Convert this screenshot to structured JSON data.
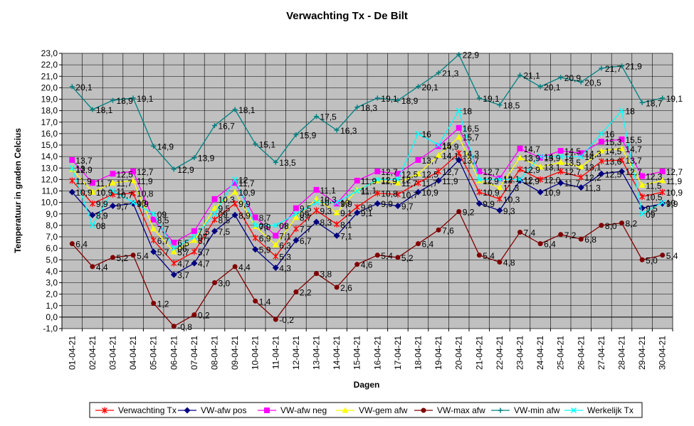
{
  "chart_data": {
    "type": "line",
    "title": "Verwachting Tx - De Bilt",
    "xlabel": "Dagen",
    "ylabel": "Temperatuur in graden Celcius",
    "ylim": [
      -1.0,
      23.0
    ],
    "y_ticks": [
      "-1,0",
      "0,0",
      "1,0",
      "2,0",
      "3,0",
      "4,0",
      "5,0",
      "6,0",
      "7,0",
      "8,0",
      "9,0",
      "10,0",
      "11,0",
      "12,0",
      "13,0",
      "14,0",
      "15,0",
      "16,0",
      "17,0",
      "18,0",
      "19,0",
      "20,0",
      "21,0",
      "22,0",
      "23,0"
    ],
    "grid": true,
    "legend_position": "bottom",
    "categories": [
      "01-04-21",
      "02-04-21",
      "03-04-21",
      "04-04-21",
      "05-04-21",
      "06-04-21",
      "07-04-21",
      "08-04-21",
      "09-04-21",
      "10-04-21",
      "11-04-21",
      "12-04-21",
      "13-04-21",
      "14-04-21",
      "15-04-21",
      "16-04-21",
      "17-04-21",
      "18-04-21",
      "19-04-21",
      "20-04-21",
      "21-04-21",
      "22-04-21",
      "23-04-21",
      "24-04-21",
      "25-04-21",
      "26-04-21",
      "27-04-21",
      "28-04-21",
      "29-04-21",
      "30-04-21"
    ],
    "series": [
      {
        "name": "Verwachting Tx",
        "color": "#ff0000",
        "marker": "star",
        "values": [
          11.9,
          9.9,
          10.7,
          10.8,
          6.7,
          4.7,
          5.7,
          8.5,
          9.9,
          6.9,
          5.3,
          7.7,
          9.3,
          8.1,
          9.6,
          10.8,
          10.7,
          11.7,
          12.7,
          14.3,
          10.9,
          10.3,
          12.9,
          12.0,
          12.7,
          12.2,
          13.6,
          13.7,
          10.5,
          10.9
        ],
        "labels": [
          "11,9",
          "9,9",
          "10,7",
          "10,8",
          "6,7",
          "4,7",
          "5,7",
          "8,5",
          "9,9",
          "6,9",
          "5,3",
          "7,7",
          "9,3",
          "8,1",
          "9,6",
          "10,8",
          "10,7",
          "11,7",
          "12,7",
          "14,3",
          "10,9",
          "10,3",
          "12,9",
          "12,0",
          "12,7",
          "12,2",
          "13,6",
          "13,7",
          "10,5",
          "10,9"
        ]
      },
      {
        "name": "VW-afw pos",
        "color": "#000080",
        "marker": "diamond",
        "values": [
          10.9,
          8.9,
          9.7,
          9.9,
          5.7,
          3.7,
          4.7,
          7.5,
          8.9,
          5.9,
          4.3,
          6.7,
          8.3,
          7.1,
          9.1,
          9.9,
          9.7,
          10.9,
          11.9,
          13.7,
          9.9,
          9.3,
          11.9,
          10.9,
          11.7,
          11.3,
          12.5,
          12.7,
          9.5,
          9.9
        ],
        "labels": [
          "10,9",
          "8,9",
          "9,7",
          "9,9",
          "5,7",
          "3,7",
          "4,7",
          "7,5",
          "8,9",
          "5,9",
          "4,3",
          "6,7",
          "8,3",
          "7,1",
          "9,1",
          "9,9",
          "9,7",
          "10,9",
          "11,9",
          "13,7",
          "9,9",
          "9,3",
          "11,9",
          "10,9",
          "11,7",
          "11,3",
          "12,5",
          "12,7",
          "9,5",
          "9,9"
        ]
      },
      {
        "name": "VW-afw neg",
        "color": "#ff00ff",
        "marker": "square",
        "values": [
          13.7,
          11.7,
          12.5,
          12.7,
          8.5,
          6.5,
          7.5,
          10.3,
          11.7,
          8.7,
          7.1,
          9.5,
          11.1,
          9.9,
          11.9,
          12.7,
          12.5,
          13.7,
          14.9,
          16.5,
          12.7,
          12.1,
          14.7,
          13.9,
          14.5,
          14.3,
          15.3,
          15.5,
          12.3,
          12.7
        ],
        "labels": [
          "13,7",
          "11,7",
          "12,5",
          "12,7",
          "8,5",
          "6,5",
          "7,5",
          "10,3",
          "11,7",
          "8,7",
          "7,1",
          "9,5",
          "11,1",
          "9,9",
          "11,9",
          "12,7",
          "12,5",
          "13,7",
          "14,9",
          "16,5",
          "12,7",
          "12,1",
          "14,7",
          "13,9",
          "14,5",
          "14,3",
          "15,3",
          "15,5",
          "12,3",
          "12,7"
        ]
      },
      {
        "name": "VW-gem afw",
        "color": "#ffff00",
        "marker": "triangle",
        "values": [
          12.9,
          10.9,
          11.7,
          11.9,
          7.7,
          5.7,
          6.7,
          9.5,
          10.9,
          7.9,
          6.3,
          8.7,
          10.3,
          9.1,
          11.1,
          11.9,
          11.7,
          12.5,
          14.1,
          15.7,
          11.9,
          11.3,
          13.9,
          13.1,
          13.5,
          13.1,
          14.5,
          14.7,
          11.5,
          11.9
        ],
        "labels": [
          "12,9",
          "10,9",
          "11,7",
          "11,9",
          "7,7",
          "5,7",
          "6,7",
          "9,5",
          "10,9",
          "7,9",
          "6,3",
          "8,7",
          "10,3",
          "9,1",
          "11,1",
          "11,9",
          "11,7",
          "12,5",
          "14,1",
          "15,7",
          "11,9",
          "11,3",
          "13,9",
          "13,1",
          "13,5",
          "13,1",
          "14,5",
          "14,7",
          "11,5",
          "11,9"
        ]
      },
      {
        "name": "VW-max afw",
        "color": "#800000",
        "marker": "circle",
        "values": [
          6.4,
          4.4,
          5.2,
          5.4,
          1.2,
          -0.8,
          0.2,
          3.0,
          4.4,
          1.4,
          -0.2,
          2.2,
          3.8,
          2.6,
          4.6,
          5.4,
          5.2,
          6.4,
          7.6,
          9.2,
          5.4,
          4.8,
          7.4,
          6.4,
          7.2,
          6.8,
          8.0,
          8.2,
          5.0,
          5.4
        ],
        "labels": [
          "6,4",
          "4,4",
          "5,2",
          "5,4",
          "1,2",
          "-0,8",
          "0,2",
          "3,0",
          "4,4",
          "1,4",
          "-0,2",
          "2,2",
          "3,8",
          "2,6",
          "4,6",
          "5,4",
          "5,2",
          "6,4",
          "7,6",
          "9,2",
          "5,4",
          "4,8",
          "7,4",
          "6,4",
          "7,2",
          "6,8",
          "8,0",
          "8,2",
          "5,0",
          "5,4"
        ]
      },
      {
        "name": "VW-min afw",
        "color": "#008080",
        "marker": "plus",
        "values": [
          20.1,
          18.1,
          18.9,
          19.1,
          14.9,
          12.9,
          13.9,
          16.7,
          18.1,
          15.1,
          13.5,
          15.9,
          17.5,
          16.3,
          18.3,
          19.1,
          18.9,
          20.1,
          21.3,
          22.9,
          19.1,
          18.5,
          21.1,
          20.1,
          20.9,
          20.5,
          21.7,
          21.9,
          18.7,
          19.1
        ],
        "labels": [
          "20,1",
          "18,1",
          "18,9",
          "19,1",
          "14,9",
          "12,9",
          "13,9",
          "16,7",
          "18,1",
          "15,1",
          "13,5",
          "15,9",
          "17,5",
          "16,3",
          "18,3",
          "19,1",
          "18,9",
          "20,1",
          "21,3",
          "22,9",
          "19,1",
          "18,5",
          "21,1",
          "20,1",
          "20,9",
          "20,5",
          "21,7",
          "21,9",
          "18,7",
          "19,1"
        ]
      },
      {
        "name": "Werkelijk Tx",
        "color": "#00ffff",
        "marker": "x",
        "values": [
          13.0,
          8.0,
          11.0,
          10.0,
          9.0,
          6.0,
          7.0,
          9.0,
          12.0,
          8.0,
          8.0,
          9.0,
          10.0,
          10.0,
          11.0,
          12.0,
          12.0,
          16.0,
          15.0,
          18.0,
          12.0,
          12.0,
          12.0,
          14.0,
          14.0,
          14.0,
          16.0,
          18.0,
          9.0,
          10.0
        ],
        "labels": [
          "13",
          "08",
          "11",
          "10",
          "09",
          "06",
          "07",
          "09",
          "12",
          "08",
          "08",
          "09",
          "10",
          "10",
          "11",
          "12",
          "12",
          "16",
          "15",
          "18",
          "12",
          "12",
          "12",
          "14",
          "14",
          "14",
          "16",
          "18",
          "09",
          "10"
        ]
      }
    ]
  }
}
